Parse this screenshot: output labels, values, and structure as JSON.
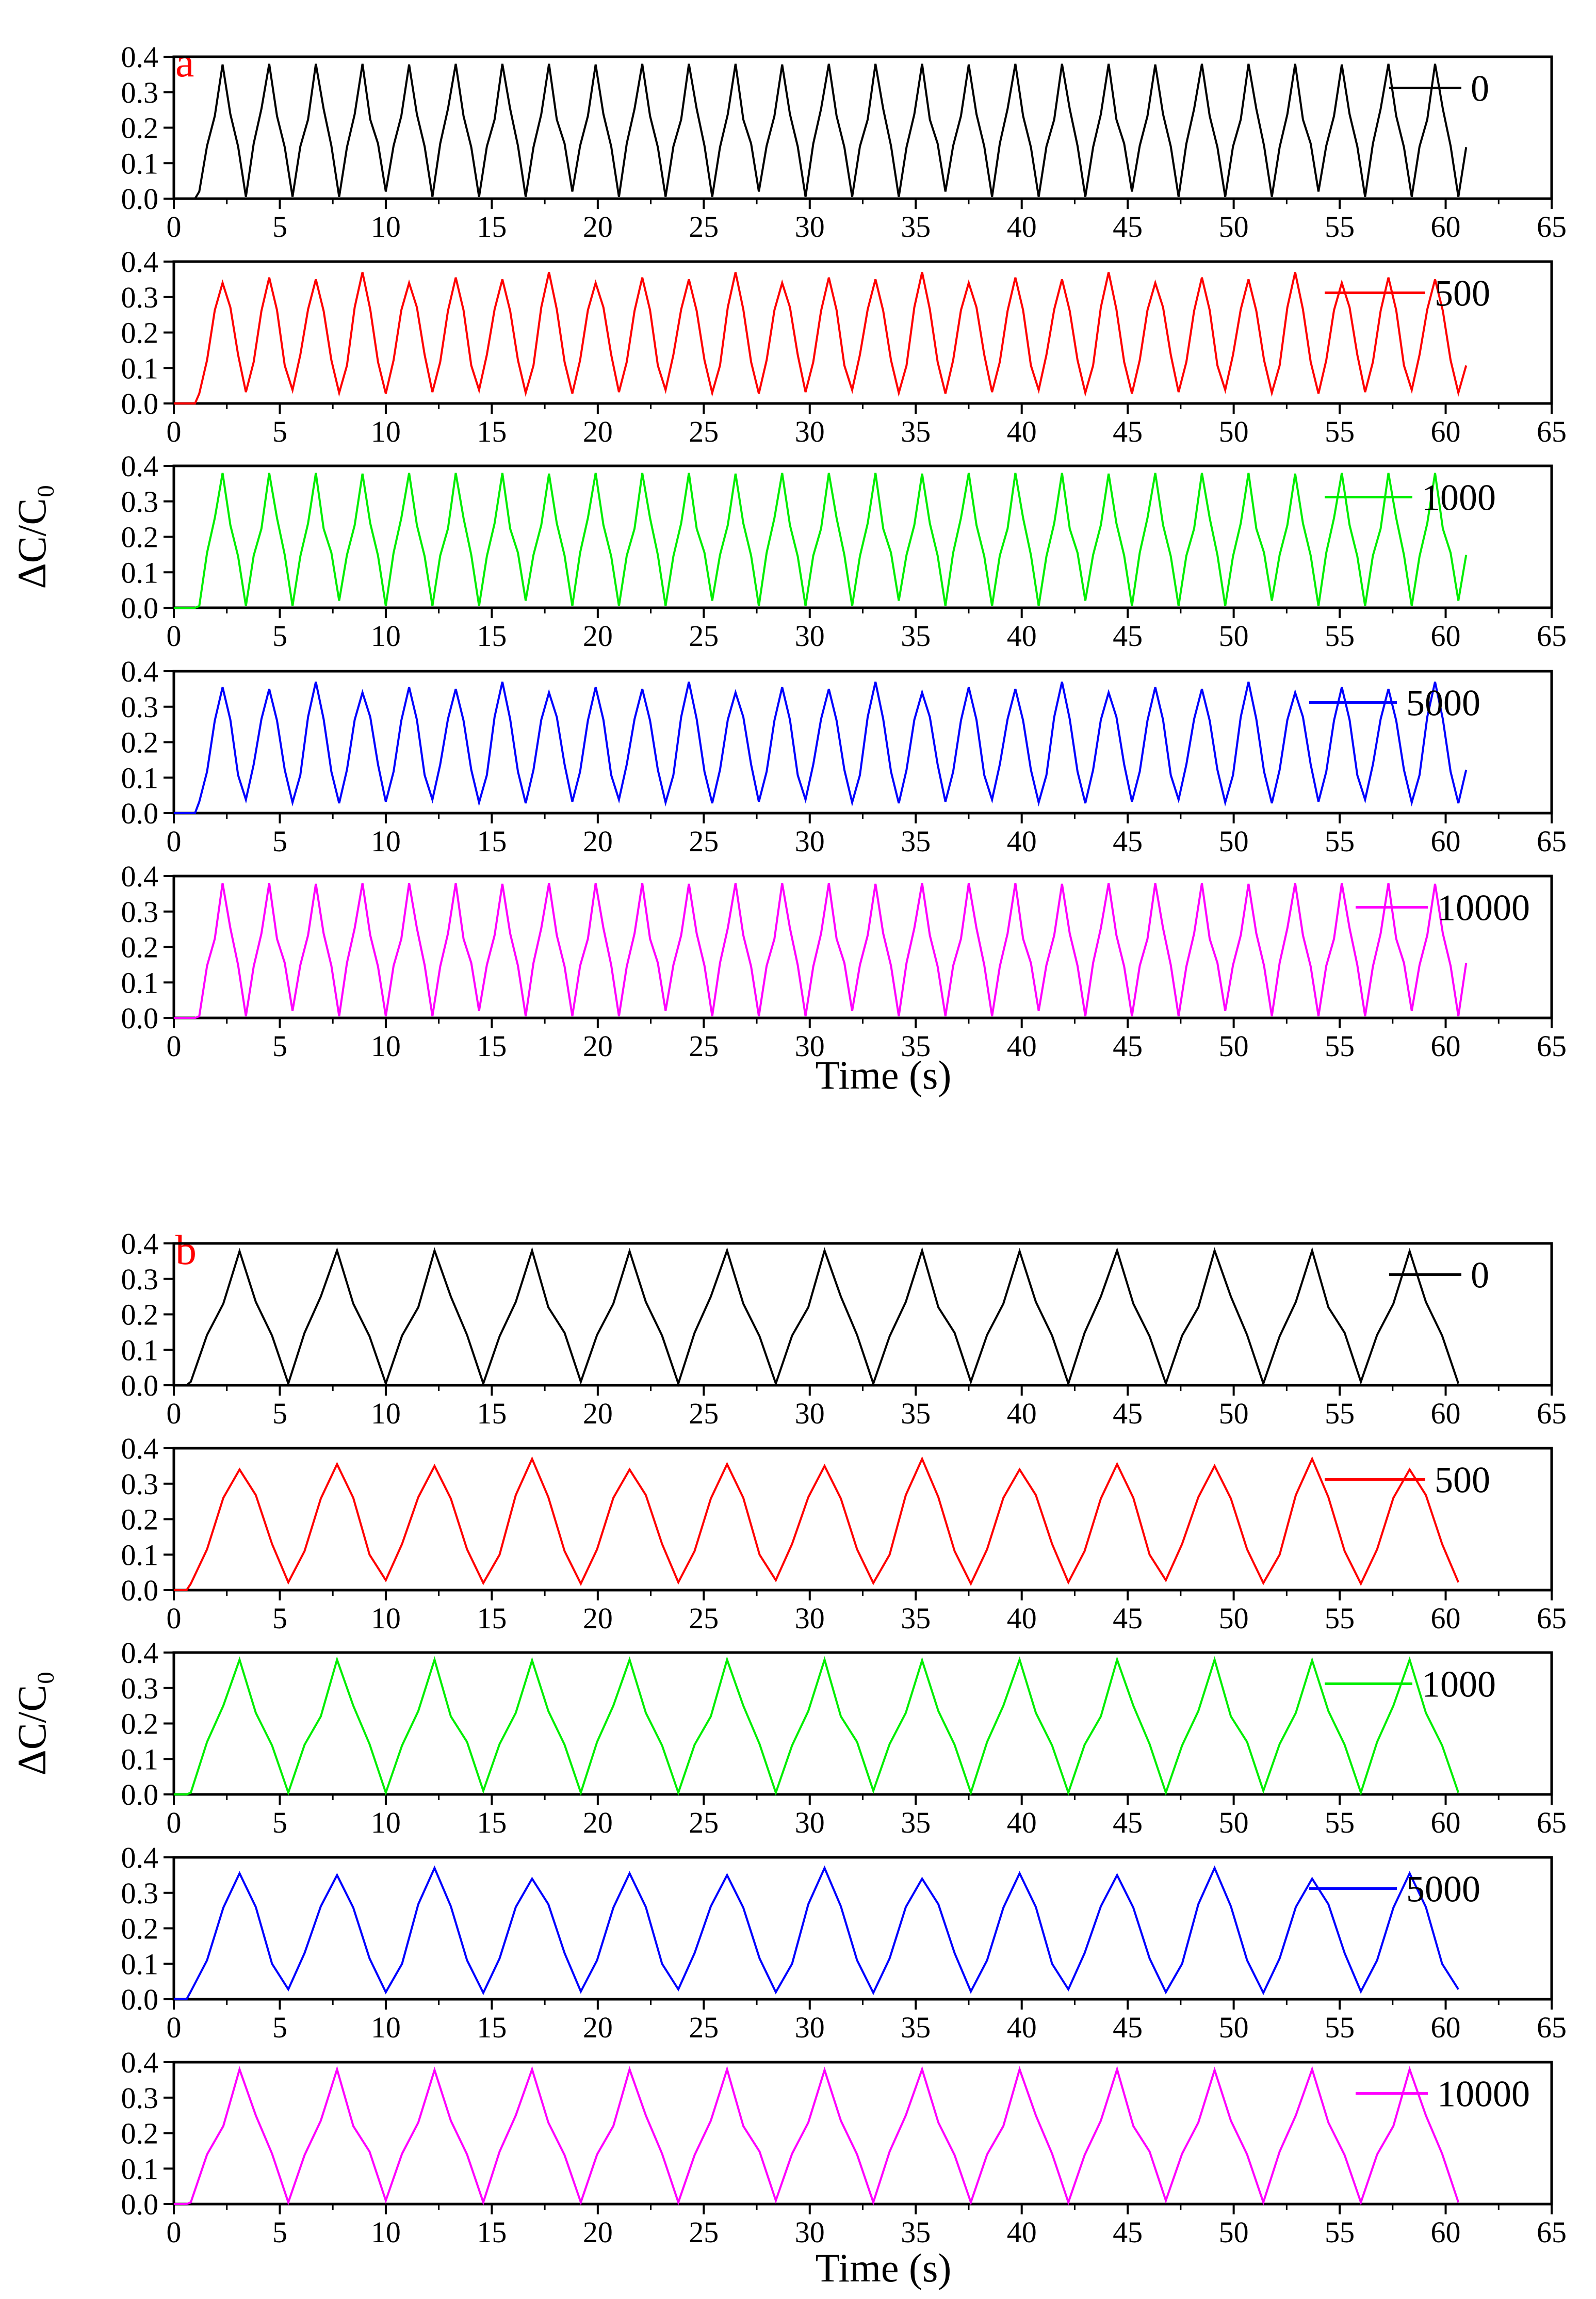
{
  "figure": {
    "x_ticks": [
      "0",
      "5",
      "10",
      "15",
      "20",
      "25",
      "30",
      "35",
      "40",
      "45",
      "50",
      "55",
      "60",
      "65"
    ],
    "y_ticks": [
      "0.0",
      "0.1",
      "0.2",
      "0.3",
      "0.4"
    ]
  },
  "chart_data": [
    {
      "panel": "a",
      "type": "line",
      "xlabel": "Time (s)",
      "ylabel": "ΔC/C₀",
      "xlim": [
        0,
        65
      ],
      "ylim": [
        0,
        0.4
      ],
      "period_s": 2.2,
      "peak": 0.37,
      "trough": 0.02,
      "start_s": 1.2,
      "end_s": 61.2,
      "series": [
        {
          "name": "0",
          "color": "#000000"
        },
        {
          "name": "500",
          "color": "#ff0000"
        },
        {
          "name": "1000",
          "color": "#00ee00"
        },
        {
          "name": "5000",
          "color": "#0000ff"
        },
        {
          "name": "10000",
          "color": "#ff00ff"
        }
      ]
    },
    {
      "panel": "b",
      "type": "line",
      "xlabel": "Time (s)",
      "ylabel": "ΔC/C₀",
      "xlim": [
        0,
        65
      ],
      "ylim": [
        0,
        0.4
      ],
      "period_s": 4.6,
      "peak": 0.37,
      "trough": 0.01,
      "start_s": 0.8,
      "end_s": 61.2,
      "series": [
        {
          "name": "0",
          "color": "#000000"
        },
        {
          "name": "500",
          "color": "#ff0000"
        },
        {
          "name": "1000",
          "color": "#00ee00"
        },
        {
          "name": "5000",
          "color": "#0000ff"
        },
        {
          "name": "10000",
          "color": "#ff00ff"
        }
      ]
    }
  ]
}
